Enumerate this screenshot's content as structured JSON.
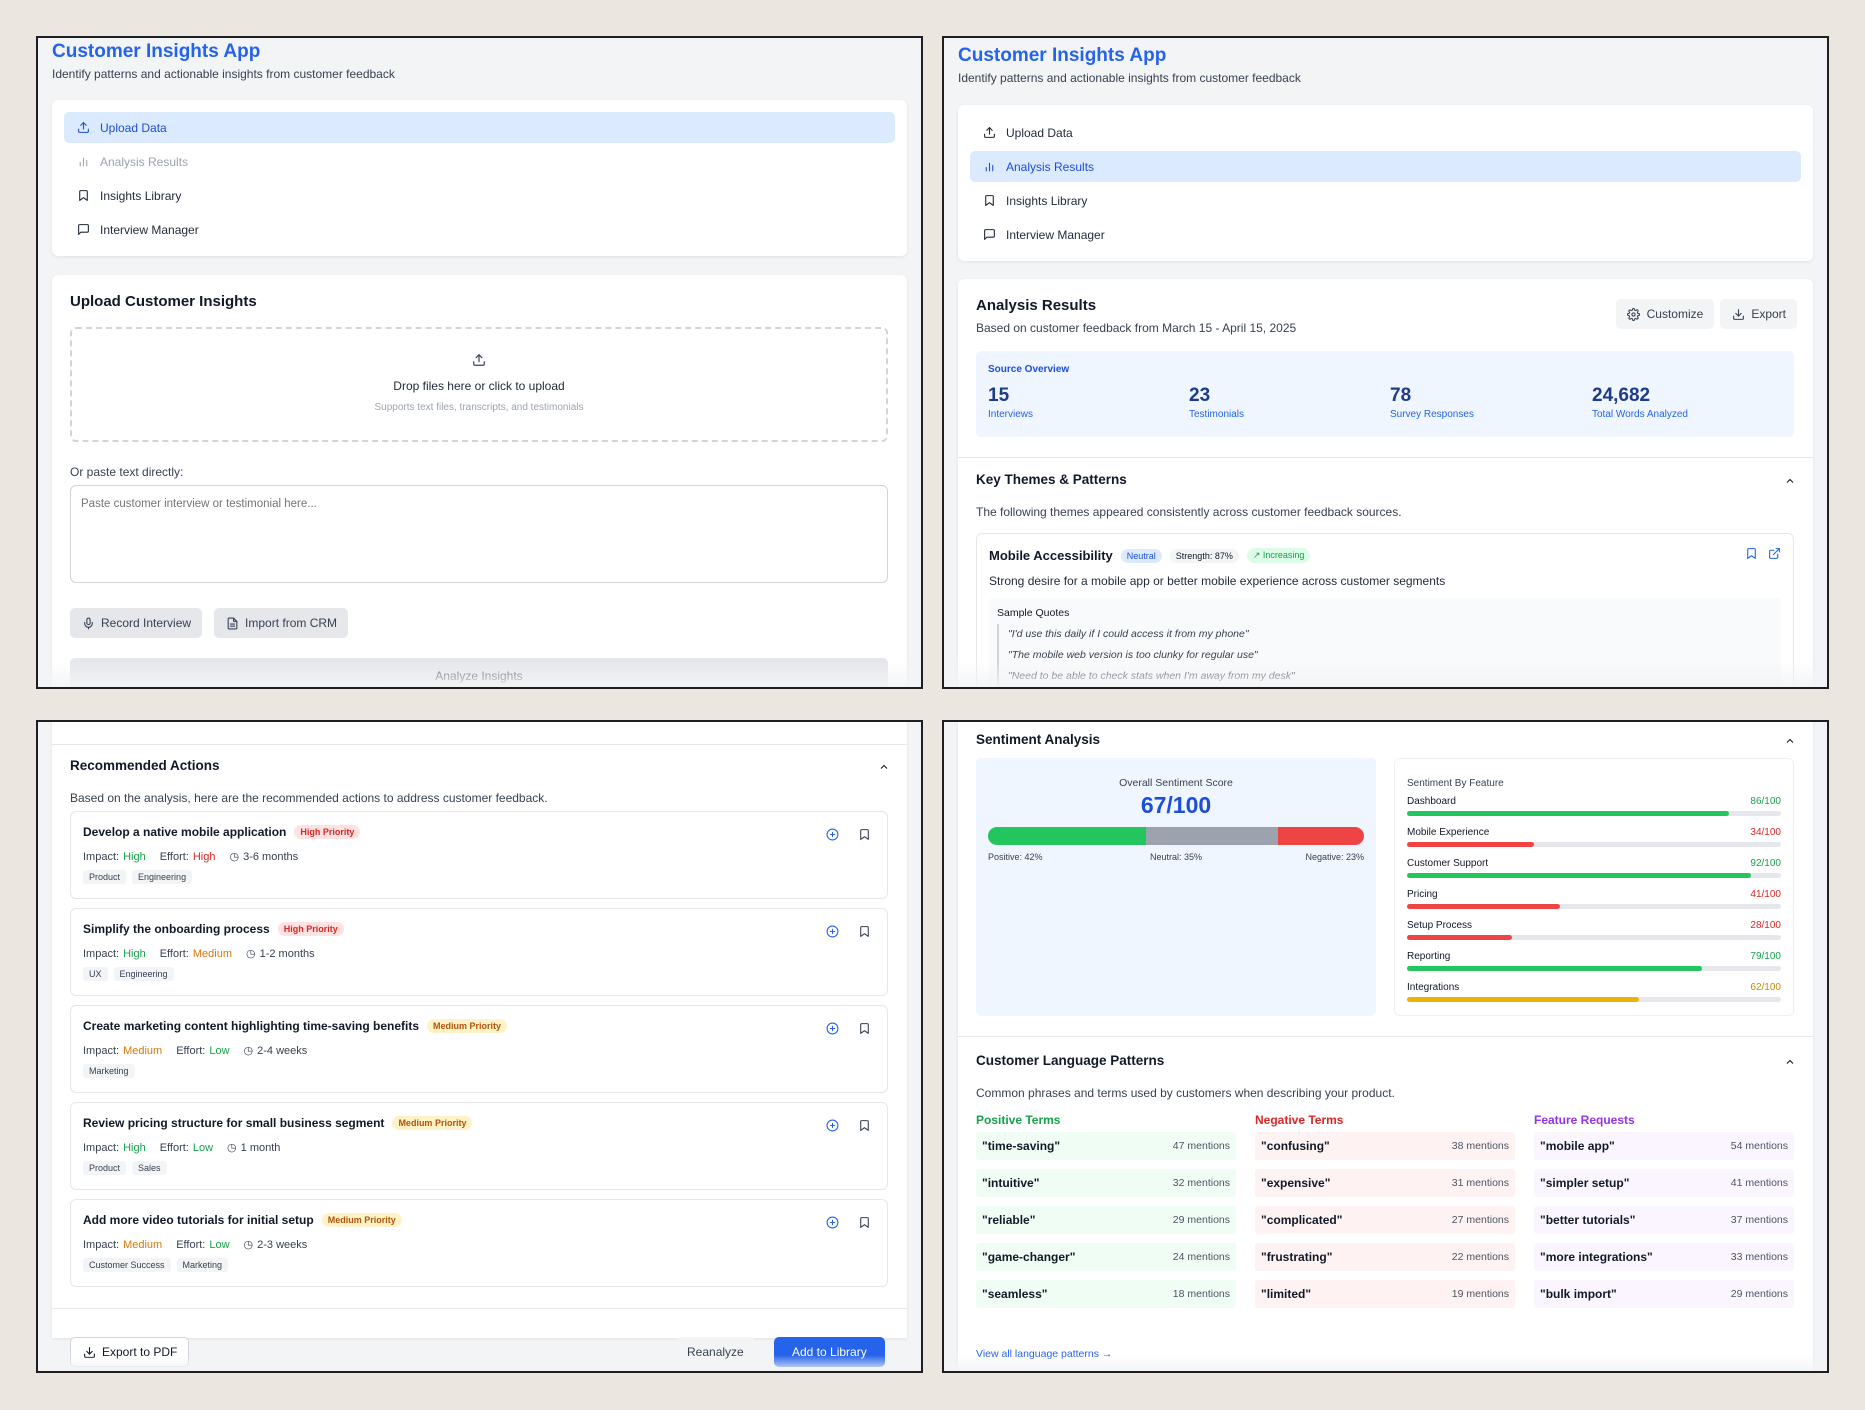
{
  "app": {
    "title": "Customer Insights App",
    "subtitle": "Identify patterns and actionable insights from customer feedback"
  },
  "nav": {
    "items": [
      {
        "label": "Upload Data",
        "icon": "upload-icon"
      },
      {
        "label": "Analysis Results",
        "icon": "bar-chart-icon"
      },
      {
        "label": "Insights Library",
        "icon": "bookmark-icon"
      },
      {
        "label": "Interview Manager",
        "icon": "message-square-icon"
      }
    ]
  },
  "upload": {
    "title": "Upload Customer Insights",
    "drop_text": "Drop files here or click to upload",
    "drop_hint": "Supports text files, transcripts, and testimonials",
    "paste_label": "Or paste text directly:",
    "paste_placeholder": "Paste customer interview or testimonial here...",
    "record_label": "Record Interview",
    "import_label": "Import from CRM",
    "analyze_label": "Analyze Insights"
  },
  "analysis": {
    "title": "Analysis Results",
    "subtitle": "Based on customer feedback from March 15 - April 15, 2025",
    "customize_label": "Customize",
    "export_label": "Export",
    "source_overview": {
      "title": "Source Overview",
      "stats": [
        {
          "value": "15",
          "label": "Interviews"
        },
        {
          "value": "23",
          "label": "Testimonials"
        },
        {
          "value": "78",
          "label": "Survey Responses"
        },
        {
          "value": "24,682",
          "label": "Total Words Analyzed"
        }
      ]
    },
    "themes": {
      "title": "Key Themes & Patterns",
      "description": "The following themes appeared consistently across customer feedback sources.",
      "theme": {
        "name": "Mobile Accessibility",
        "sentiment": "Neutral",
        "strength": "Strength: 87%",
        "trend": "Increasing",
        "description": "Strong desire for a mobile app or better mobile experience across customer segments",
        "quotes_title": "Sample Quotes",
        "quotes": [
          "\"I'd use this daily if I could access it from my phone\"",
          "\"The mobile web version is too clunky for regular use\"",
          "\"Need to be able to check stats when I'm away from my desk\""
        ]
      }
    }
  },
  "actions": {
    "title": "Recommended Actions",
    "description": "Based on the analysis, here are the recommended actions to address customer feedback.",
    "impact_label": "Impact:",
    "effort_label": "Effort:",
    "items": [
      {
        "title": "Develop a native mobile application",
        "priority": "High Priority",
        "impact": "High",
        "effort": "High",
        "time": "3-6 months",
        "tags": [
          "Product",
          "Engineering"
        ]
      },
      {
        "title": "Simplify the onboarding process",
        "priority": "High Priority",
        "impact": "High",
        "effort": "Medium",
        "time": "1-2 months",
        "tags": [
          "UX",
          "Engineering"
        ]
      },
      {
        "title": "Create marketing content highlighting time-saving benefits",
        "priority": "Medium Priority",
        "impact": "Medium",
        "effort": "Low",
        "time": "2-4 weeks",
        "tags": [
          "Marketing"
        ]
      },
      {
        "title": "Review pricing structure for small business segment",
        "priority": "Medium Priority",
        "impact": "High",
        "effort": "Low",
        "time": "1 month",
        "tags": [
          "Product",
          "Sales"
        ]
      },
      {
        "title": "Add more video tutorials for initial setup",
        "priority": "Medium Priority",
        "impact": "Medium",
        "effort": "Low",
        "time": "2-3 weeks",
        "tags": [
          "Customer Success",
          "Marketing"
        ]
      }
    ],
    "export_pdf_label": "Export to PDF",
    "reanalyze_label": "Reanalyze",
    "add_library_label": "Add to Library"
  },
  "sentiment": {
    "title": "Sentiment Analysis",
    "overall_label": "Overall Sentiment Score",
    "overall_value": "67/100",
    "positive": {
      "label": "Positive: 42%",
      "pct": 42
    },
    "neutral": {
      "label": "Neutral: 35%",
      "pct": 35
    },
    "negative": {
      "label": "Negative: 23%",
      "pct": 23
    },
    "by_feature_title": "Sentiment By Feature",
    "features": [
      {
        "name": "Dashboard",
        "score": 86,
        "label": "86/100",
        "color": "#22c55e"
      },
      {
        "name": "Mobile Experience",
        "score": 34,
        "label": "34/100",
        "color": "#ef4444"
      },
      {
        "name": "Customer Support",
        "score": 92,
        "label": "92/100",
        "color": "#22c55e"
      },
      {
        "name": "Pricing",
        "score": 41,
        "label": "41/100",
        "color": "#ef4444"
      },
      {
        "name": "Setup Process",
        "score": 28,
        "label": "28/100",
        "color": "#ef4444"
      },
      {
        "name": "Reporting",
        "score": 79,
        "label": "79/100",
        "color": "#22c55e"
      },
      {
        "name": "Integrations",
        "score": 62,
        "label": "62/100",
        "color": "#eab308"
      }
    ]
  },
  "language": {
    "title": "Customer Language Patterns",
    "description": "Common phrases and terms used by customers when describing your product.",
    "positive_title": "Positive Terms",
    "negative_title": "Negative Terms",
    "requests_title": "Feature Requests",
    "positive": [
      {
        "term": "\"time-saving\"",
        "count": "47 mentions"
      },
      {
        "term": "\"intuitive\"",
        "count": "32 mentions"
      },
      {
        "term": "\"reliable\"",
        "count": "29 mentions"
      },
      {
        "term": "\"game-changer\"",
        "count": "24 mentions"
      },
      {
        "term": "\"seamless\"",
        "count": "18 mentions"
      }
    ],
    "negative": [
      {
        "term": "\"confusing\"",
        "count": "38 mentions"
      },
      {
        "term": "\"expensive\"",
        "count": "31 mentions"
      },
      {
        "term": "\"complicated\"",
        "count": "27 mentions"
      },
      {
        "term": "\"frustrating\"",
        "count": "22 mentions"
      },
      {
        "term": "\"limited\"",
        "count": "19 mentions"
      }
    ],
    "requests": [
      {
        "term": "\"mobile app\"",
        "count": "54 mentions"
      },
      {
        "term": "\"simpler setup\"",
        "count": "41 mentions"
      },
      {
        "term": "\"better tutorials\"",
        "count": "37 mentions"
      },
      {
        "term": "\"more integrations\"",
        "count": "33 mentions"
      },
      {
        "term": "\"bulk import\"",
        "count": "29 mentions"
      }
    ],
    "view_all_label": "View all language patterns →"
  },
  "colors": {
    "brand": "#2563eb",
    "positive": "#22c55e",
    "neutral": "#9ca3af",
    "negative": "#ef4444",
    "warning": "#eab308",
    "feature_request": "#9333ea"
  }
}
